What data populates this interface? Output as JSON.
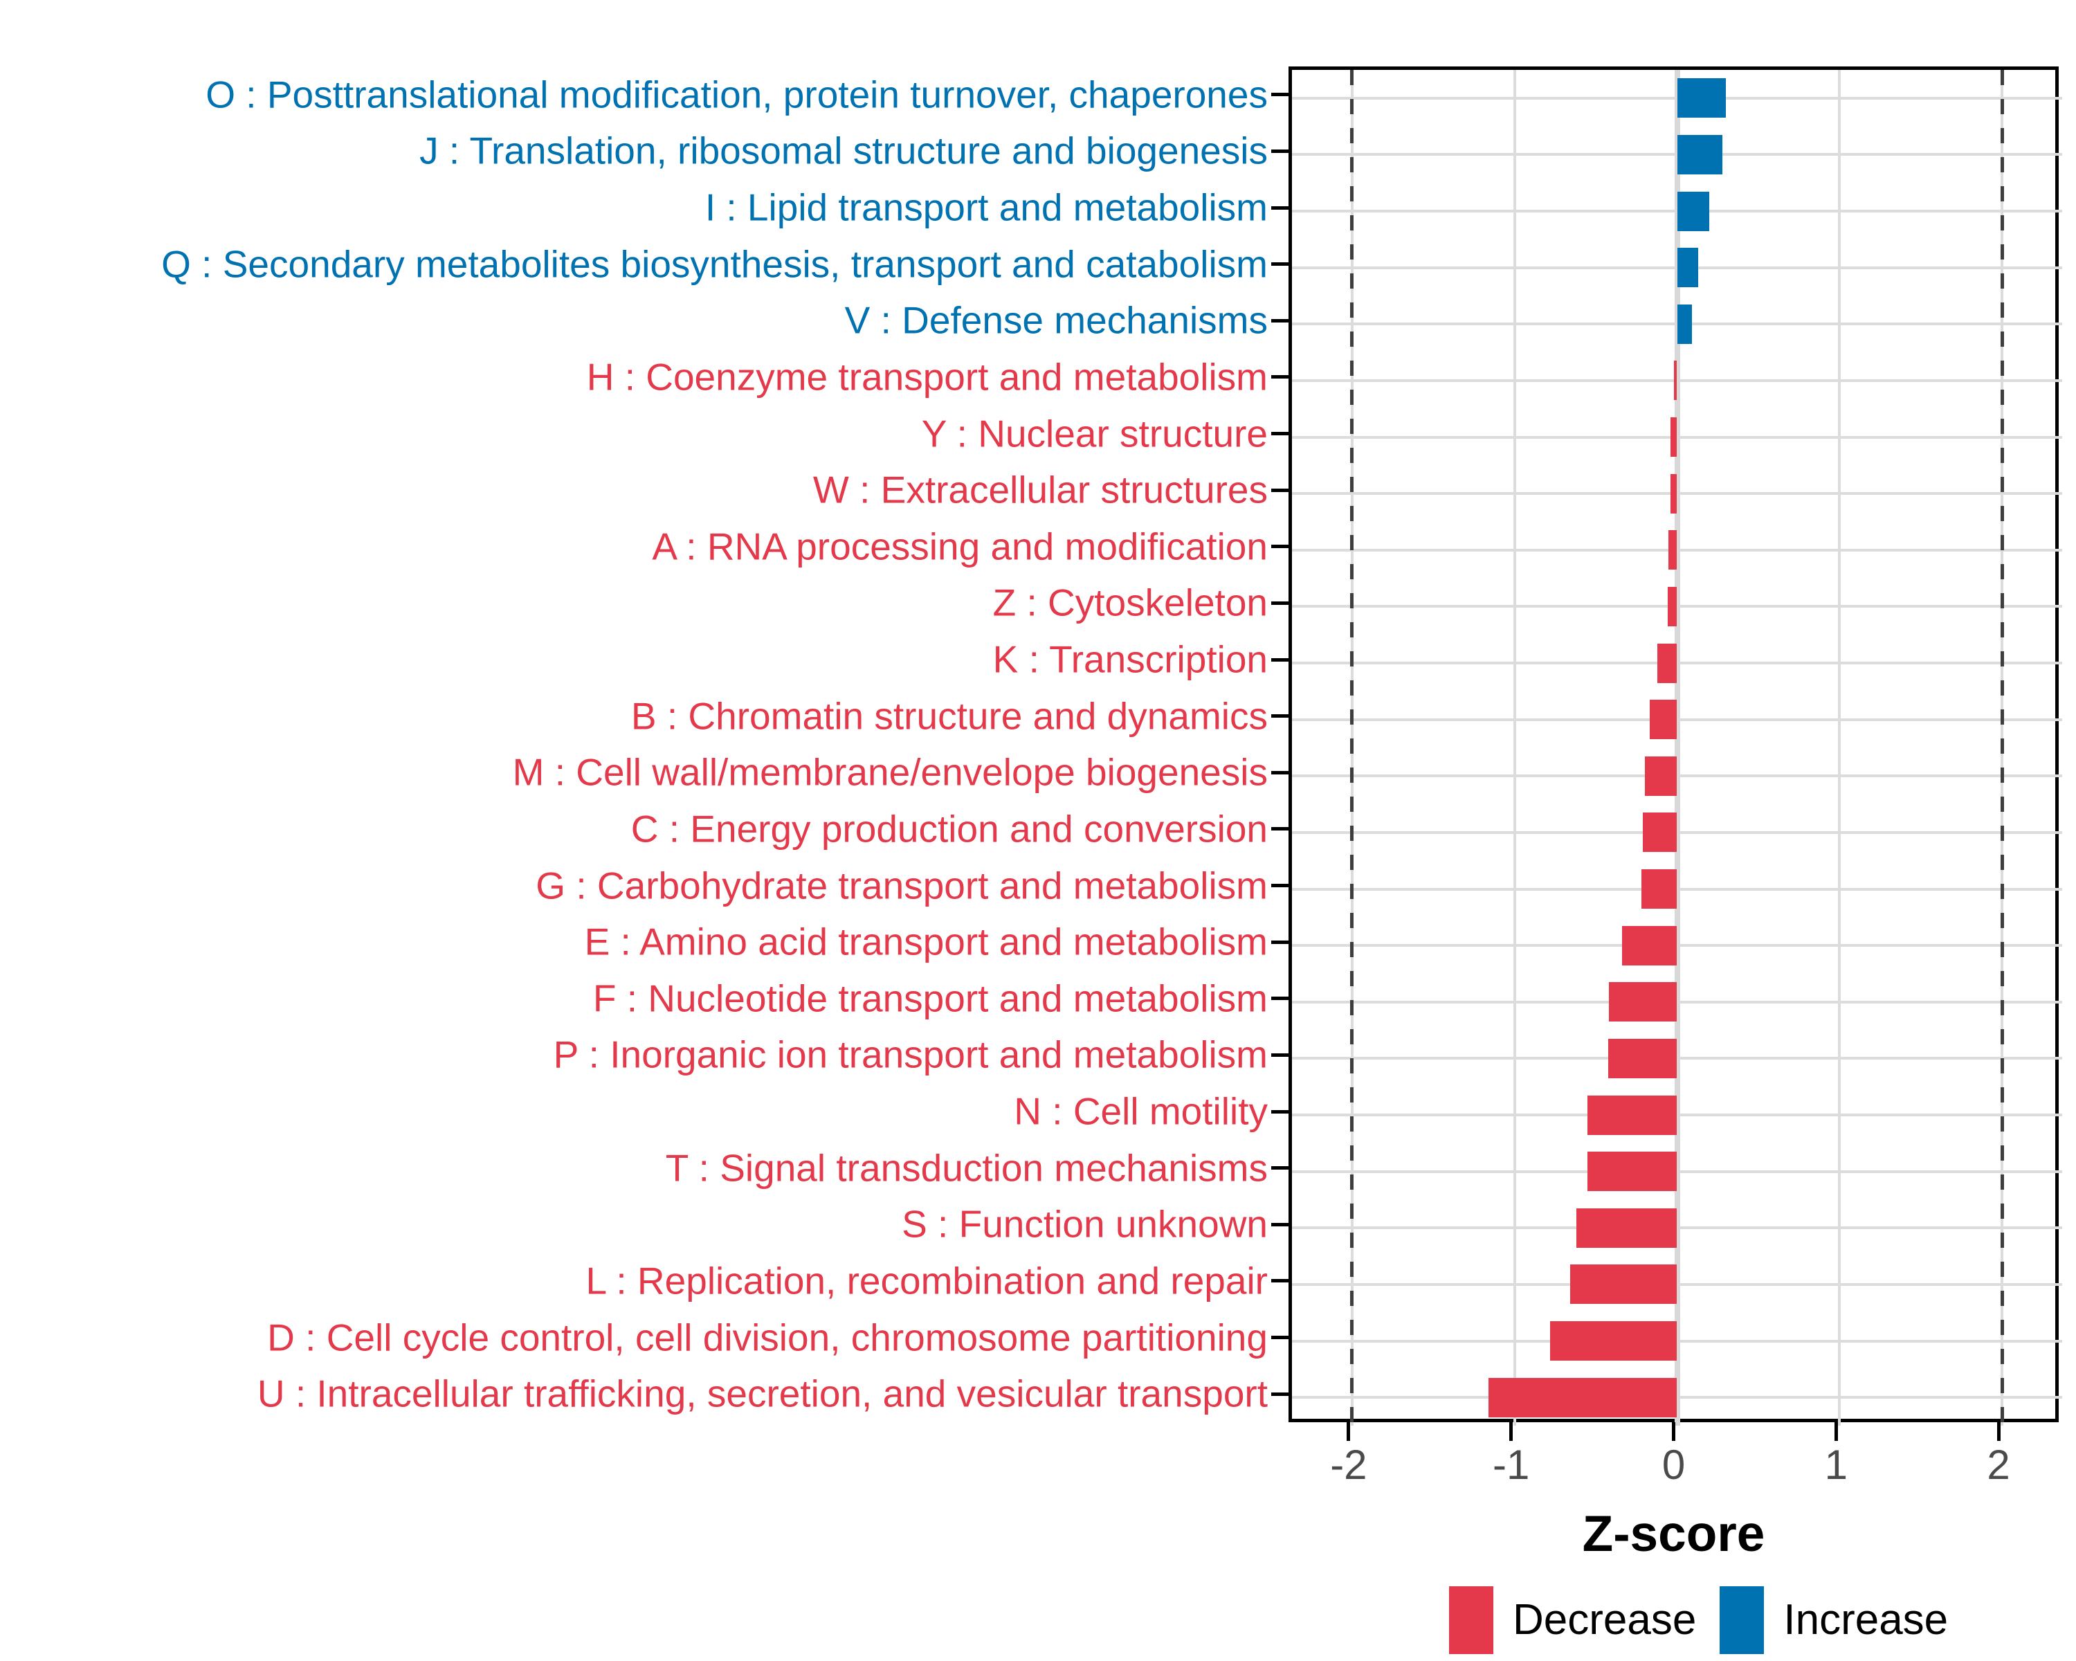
{
  "chart_data": {
    "type": "bar",
    "orientation": "horizontal",
    "title": "",
    "xlabel": "Z-score",
    "x_ticks": [
      -2,
      -1,
      0,
      1,
      2
    ],
    "xlim": [
      -2.37,
      2.37
    ],
    "dashed_vlines": [
      -2,
      2
    ],
    "grid": true,
    "legend_position": "bottom-right",
    "colors": {
      "increase": "#0072B2",
      "decrease": "#E4394A",
      "grid": "#DCDCDC",
      "zero_line": "#D9D9D9",
      "dashed_line": "#3E3E3E",
      "axis_text": "#4A4A4A",
      "panel_border": "#000000"
    },
    "categories": [
      {
        "code": "O",
        "label": "O : Posttranslational modification, protein turnover, chaperones",
        "value": 0.3,
        "direction": "increase"
      },
      {
        "code": "J",
        "label": "J : Translation, ribosomal structure and biogenesis",
        "value": 0.28,
        "direction": "increase"
      },
      {
        "code": "I",
        "label": "I : Lipid transport and metabolism",
        "value": 0.2,
        "direction": "increase"
      },
      {
        "code": "Q",
        "label": "Q : Secondary metabolites biosynthesis, transport and catabolism",
        "value": 0.13,
        "direction": "increase"
      },
      {
        "code": "V",
        "label": "V : Defense mechanisms",
        "value": 0.09,
        "direction": "increase"
      },
      {
        "code": "H",
        "label": "H : Coenzyme transport and metabolism",
        "value": -0.02,
        "direction": "decrease"
      },
      {
        "code": "Y",
        "label": "Y : Nuclear structure",
        "value": -0.04,
        "direction": "decrease"
      },
      {
        "code": "W",
        "label": "W : Extracellular structures",
        "value": -0.042,
        "direction": "decrease"
      },
      {
        "code": "A",
        "label": "A : RNA processing and modification",
        "value": -0.055,
        "direction": "decrease"
      },
      {
        "code": "Z",
        "label": "Z : Cytoskeleton",
        "value": -0.058,
        "direction": "decrease"
      },
      {
        "code": "K",
        "label": "K : Transcription",
        "value": -0.12,
        "direction": "decrease"
      },
      {
        "code": "B",
        "label": "B : Chromatin structure and dynamics",
        "value": -0.17,
        "direction": "decrease"
      },
      {
        "code": "M",
        "label": "M : Cell wall/membrane/envelope biogenesis",
        "value": -0.2,
        "direction": "decrease"
      },
      {
        "code": "C",
        "label": "C : Energy production and conversion",
        "value": -0.21,
        "direction": "decrease"
      },
      {
        "code": "G",
        "label": "G : Carbohydrate transport and metabolism",
        "value": -0.22,
        "direction": "decrease"
      },
      {
        "code": "E",
        "label": "E : Amino acid transport and metabolism",
        "value": -0.34,
        "direction": "decrease"
      },
      {
        "code": "F",
        "label": "F : Nucleotide transport and metabolism",
        "value": -0.42,
        "direction": "decrease"
      },
      {
        "code": "P",
        "label": "P : Inorganic ion transport and metabolism",
        "value": -0.425,
        "direction": "decrease"
      },
      {
        "code": "N",
        "label": "N : Cell motility",
        "value": -0.55,
        "direction": "decrease"
      },
      {
        "code": "T",
        "label": "T : Signal transduction mechanisms",
        "value": -0.552,
        "direction": "decrease"
      },
      {
        "code": "S",
        "label": "S : Function unknown",
        "value": -0.62,
        "direction": "decrease"
      },
      {
        "code": "L",
        "label": "L : Replication, recombination and repair",
        "value": -0.66,
        "direction": "decrease"
      },
      {
        "code": "D",
        "label": "D : Cell cycle control, cell division, chromosome partitioning",
        "value": -0.78,
        "direction": "decrease"
      },
      {
        "code": "U",
        "label": "U : Intracellular trafficking, secretion, and vesicular transport",
        "value": -1.16,
        "direction": "decrease"
      }
    ],
    "legend": [
      {
        "label": "Decrease",
        "color_key": "decrease"
      },
      {
        "label": "Increase",
        "color_key": "increase"
      }
    ]
  }
}
